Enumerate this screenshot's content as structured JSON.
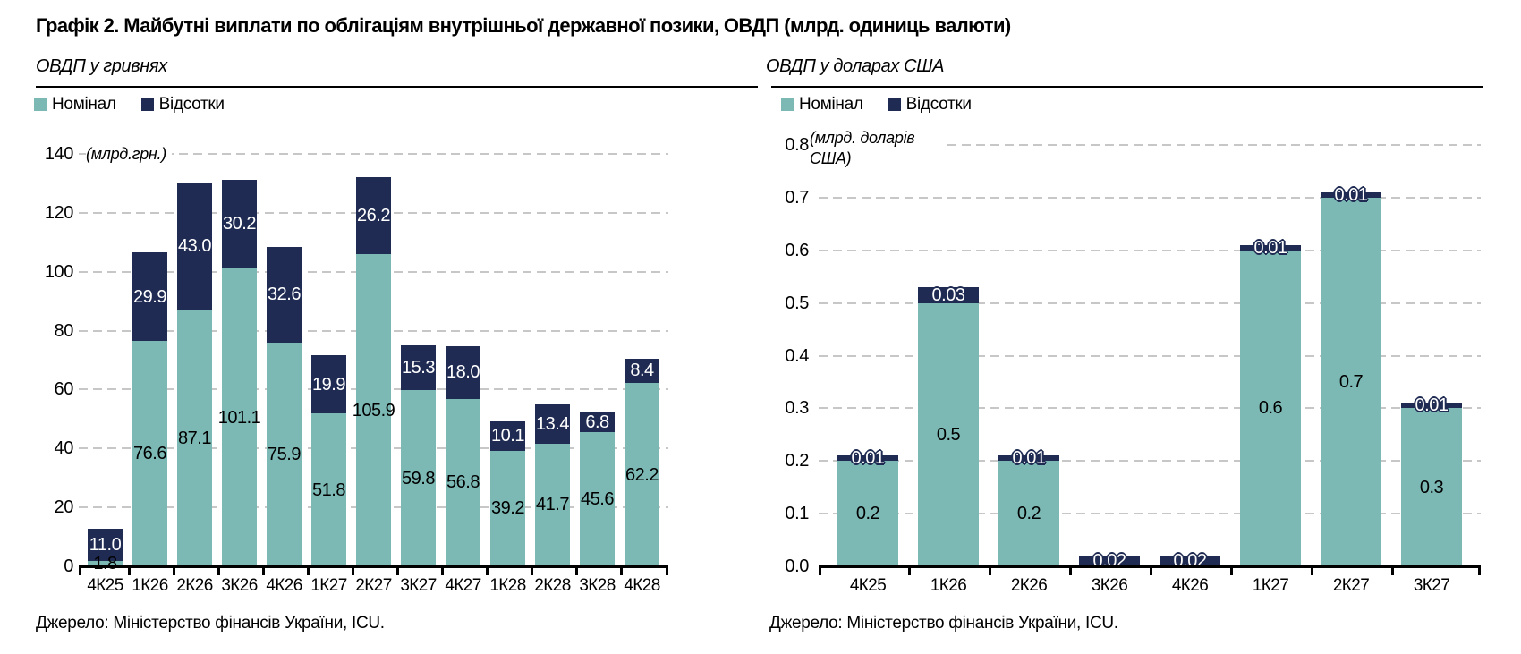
{
  "page": {
    "title": "Графік 2. Майбутні виплати по облігаціям внутрішньої державної позики, ОВДП (млрд. одиниць валюти)",
    "source": "Джерело: Міністерство фінансів України, ICU."
  },
  "colors": {
    "nominal": "#7cb9b5",
    "interest": "#1f2b52",
    "grid": "#c7c7c7",
    "axis": "#000000",
    "background": "#ffffff"
  },
  "chart_data": [
    {
      "type": "bar",
      "stacked": true,
      "title": "ОВДП у гривнях",
      "unit_label": "(млрд.грн.)",
      "legend": [
        "Номінал",
        "Відсотки"
      ],
      "legend_position": "top-left",
      "grid": true,
      "categories": [
        "4К25",
        "1К26",
        "2К26",
        "3К26",
        "4К26",
        "1К27",
        "2К27",
        "3К27",
        "4К27",
        "1К28",
        "2К28",
        "3К28",
        "4К28"
      ],
      "series": [
        {
          "name": "Номінал",
          "values": [
            1.8,
            76.6,
            87.1,
            101.1,
            75.9,
            51.8,
            105.9,
            59.8,
            56.8,
            39.2,
            41.7,
            45.6,
            62.2
          ],
          "labels": [
            "1.8",
            "76.6",
            "87.1",
            "101.1",
            "75.9",
            "51.8",
            "105.9",
            "59.8",
            "56.8",
            "39.2",
            "41.7",
            "45.6",
            "62.2"
          ]
        },
        {
          "name": "Відсотки",
          "values": [
            11.0,
            29.9,
            43.0,
            30.2,
            32.6,
            19.9,
            26.2,
            15.3,
            18.0,
            10.1,
            13.4,
            6.8,
            8.4
          ],
          "labels": [
            "11.0",
            "29.9",
            "43.0",
            "30.2",
            "32.6",
            "19.9",
            "26.2",
            "15.3",
            "18.0",
            "10.1",
            "13.4",
            "6.8",
            "8.4"
          ]
        }
      ],
      "ylim": [
        0,
        140
      ],
      "yticks": [
        "0",
        "20",
        "40",
        "60",
        "80",
        "100",
        "120",
        "140"
      ],
      "xlabel": "",
      "ylabel": "(млрд.грн.)"
    },
    {
      "type": "bar",
      "stacked": true,
      "title": "ОВДП у доларах США",
      "unit_label": "(млрд. доларів США)",
      "legend": [
        "Номінал",
        "Відсотки"
      ],
      "legend_position": "top-left",
      "grid": true,
      "categories": [
        "4К25",
        "1К26",
        "2К26",
        "3К26",
        "4К26",
        "1К27",
        "2К27",
        "3К27"
      ],
      "series": [
        {
          "name": "Номінал",
          "values": [
            0.2,
            0.5,
            0.2,
            0,
            0,
            0.6,
            0.7,
            0.3
          ],
          "labels": [
            "0.2",
            "0.5",
            "0.2",
            "",
            "",
            "0.6",
            "0.7",
            "0.3"
          ]
        },
        {
          "name": "Відсотки",
          "values": [
            0.01,
            0.03,
            0.01,
            0.02,
            0.02,
            0.01,
            0.01,
            0.01
          ],
          "labels": [
            "0.01",
            "0.03",
            "0.01",
            "0.02",
            "0.02",
            "0.01",
            "0.01",
            "0.01"
          ]
        }
      ],
      "ylim": [
        0,
        0.8
      ],
      "yticks": [
        "0.0",
        "0.1",
        "0.2",
        "0.3",
        "0.4",
        "0.5",
        "0.6",
        "0.7",
        "0.8"
      ],
      "xlabel": "",
      "ylabel": "(млрд. доларів США)"
    }
  ]
}
